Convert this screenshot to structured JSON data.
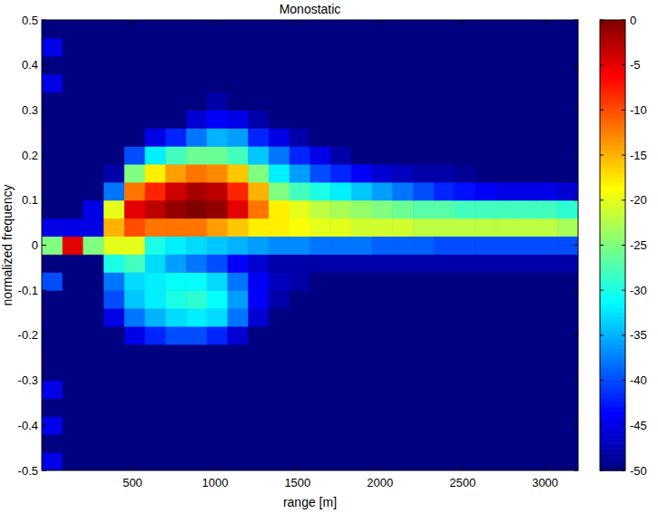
{
  "chart_data": {
    "type": "heatmap",
    "title": "Monostatic",
    "x_label": "range [m]",
    "y_label": "normalized frequency",
    "xlim": [
      -50,
      3200
    ],
    "ylim": [
      -0.5,
      0.5
    ],
    "xticks": [
      500,
      1000,
      1500,
      2000,
      2500,
      3000
    ],
    "yticks": [
      -0.5,
      -0.4,
      -0.3,
      -0.2,
      -0.1,
      0,
      0.1,
      0.2,
      0.3,
      0.4,
      0.5
    ],
    "x_bins": [
      -50,
      75,
      200,
      325,
      450,
      575,
      700,
      825,
      950,
      1075,
      1200,
      1325,
      1450,
      1575,
      1700,
      1825,
      1950,
      2075,
      2200,
      2325,
      2450,
      2575,
      2700,
      2825,
      2950,
      3075,
      3200
    ],
    "y_bins": [
      -0.5,
      -0.46,
      -0.42,
      -0.38,
      -0.34,
      -0.3,
      -0.26,
      -0.22,
      -0.18,
      -0.14,
      -0.1,
      -0.06,
      -0.02,
      0.02,
      0.06,
      0.1,
      0.14,
      0.18,
      0.22,
      0.26,
      0.3,
      0.34,
      0.38,
      0.42,
      0.46,
      0.5
    ],
    "cells": [
      [
        -45,
        -50,
        -50,
        -50,
        -50,
        -50,
        -50,
        -50,
        -50,
        -50,
        -50,
        -50,
        -50,
        -50,
        -50,
        -50,
        -50,
        -50,
        -50,
        -50,
        -50,
        -50,
        -50,
        -50,
        -50,
        -50
      ],
      [
        -50,
        -50,
        -50,
        -50,
        -50,
        -50,
        -50,
        -50,
        -50,
        -50,
        -50,
        -50,
        -50,
        -50,
        -50,
        -50,
        -50,
        -50,
        -50,
        -50,
        -50,
        -50,
        -50,
        -50,
        -50,
        -50
      ],
      [
        -45,
        -50,
        -50,
        -50,
        -50,
        -50,
        -50,
        -50,
        -50,
        -50,
        -50,
        -50,
        -50,
        -50,
        -50,
        -50,
        -50,
        -50,
        -50,
        -50,
        -50,
        -50,
        -50,
        -50,
        -50,
        -50
      ],
      [
        -50,
        -50,
        -50,
        -50,
        -50,
        -50,
        -50,
        -50,
        -50,
        -50,
        -50,
        -50,
        -50,
        -50,
        -50,
        -50,
        -50,
        -50,
        -50,
        -50,
        -50,
        -50,
        -50,
        -50,
        -50,
        -50
      ],
      [
        -45,
        -50,
        -50,
        -50,
        -50,
        -50,
        -50,
        -50,
        -50,
        -50,
        -50,
        -50,
        -50,
        -50,
        -50,
        -50,
        -50,
        -50,
        -50,
        -50,
        -50,
        -50,
        -50,
        -50,
        -50,
        -50
      ],
      [
        -50,
        -50,
        -50,
        -50,
        -50,
        -50,
        -50,
        -50,
        -50,
        -50,
        -50,
        -50,
        -50,
        -50,
        -50,
        -50,
        -50,
        -50,
        -50,
        -50,
        -50,
        -50,
        -50,
        -50,
        -50,
        -50
      ],
      [
        -50,
        -50,
        -50,
        -50,
        -50,
        -50,
        -50,
        -50,
        -50,
        -50,
        -50,
        -50,
        -50,
        -50,
        -50,
        -50,
        -50,
        -50,
        -50,
        -50,
        -50,
        -50,
        -50,
        -50,
        -50,
        -50
      ],
      [
        -50,
        -50,
        -50,
        -50,
        -45,
        -42,
        -40,
        -40,
        -42,
        -46,
        -50,
        -50,
        -50,
        -50,
        -50,
        -50,
        -50,
        -50,
        -50,
        -50,
        -50,
        -50,
        -50,
        -50,
        -50,
        -50
      ],
      [
        -50,
        -50,
        -50,
        -45,
        -38,
        -35,
        -33,
        -32,
        -33,
        -38,
        -46,
        -50,
        -50,
        -50,
        -50,
        -50,
        -50,
        -50,
        -50,
        -50,
        -50,
        -50,
        -50,
        -50,
        -50,
        -50
      ],
      [
        -50,
        -50,
        -50,
        -40,
        -34,
        -32,
        -30,
        -29,
        -31,
        -36,
        -44,
        -48,
        -50,
        -50,
        -50,
        -50,
        -50,
        -50,
        -50,
        -50,
        -50,
        -50,
        -50,
        -50,
        -50,
        -50
      ],
      [
        -40,
        -50,
        -50,
        -38,
        -33,
        -32,
        -31,
        -31,
        -33,
        -38,
        -44,
        -47,
        -48,
        -50,
        -50,
        -50,
        -50,
        -50,
        -50,
        -50,
        -50,
        -50,
        -50,
        -50,
        -50,
        -50
      ],
      [
        -50,
        -50,
        -50,
        -30,
        -28,
        -33,
        -36,
        -38,
        -40,
        -44,
        -46,
        -48,
        -48,
        -48,
        -48,
        -48,
        -48,
        -48,
        -48,
        -48,
        -48,
        -48,
        -48,
        -48,
        -48,
        -48
      ],
      [
        -25,
        -5,
        -25,
        -20,
        -20,
        -30,
        -32,
        -33,
        -34,
        -35,
        -36,
        -37,
        -37,
        -38,
        -38,
        -38,
        -39,
        -39,
        -39,
        -40,
        -40,
        -40,
        -40,
        -40,
        -40,
        -40
      ],
      [
        -45,
        -45,
        -45,
        -15,
        -10,
        -12,
        -12,
        -12,
        -14,
        -16,
        -18,
        -18,
        -19,
        -20,
        -20,
        -21,
        -21,
        -21,
        -22,
        -22,
        -22,
        -22,
        -22,
        -22,
        -22,
        -23
      ],
      [
        -50,
        -50,
        -45,
        -20,
        -5,
        -3,
        -1,
        0,
        -1,
        -5,
        -12,
        -18,
        -20,
        -22,
        -23,
        -24,
        -25,
        -26,
        -27,
        -27,
        -28,
        -28,
        -28,
        -28,
        -28,
        -29
      ],
      [
        -50,
        -50,
        -50,
        -38,
        -12,
        -8,
        -4,
        -2,
        -3,
        -8,
        -15,
        -25,
        -28,
        -30,
        -32,
        -34,
        -36,
        -38,
        -40,
        -42,
        -43,
        -44,
        -45,
        -45,
        -45,
        -46
      ],
      [
        -50,
        -50,
        -50,
        -48,
        -25,
        -18,
        -14,
        -12,
        -13,
        -16,
        -25,
        -32,
        -36,
        -40,
        -42,
        -44,
        -46,
        -47,
        -48,
        -48,
        -49,
        -50,
        -50,
        -50,
        -50,
        -50
      ],
      [
        -50,
        -50,
        -50,
        -50,
        -40,
        -32,
        -28,
        -26,
        -26,
        -28,
        -34,
        -38,
        -42,
        -45,
        -48,
        -50,
        -50,
        -50,
        -50,
        -50,
        -50,
        -50,
        -50,
        -50,
        -50,
        -50
      ],
      [
        -50,
        -50,
        -50,
        -50,
        -50,
        -45,
        -42,
        -38,
        -35,
        -36,
        -42,
        -45,
        -48,
        -50,
        -50,
        -50,
        -50,
        -50,
        -50,
        -50,
        -50,
        -50,
        -50,
        -50,
        -50,
        -50
      ],
      [
        -50,
        -50,
        -50,
        -50,
        -50,
        -50,
        -50,
        -46,
        -44,
        -45,
        -48,
        -50,
        -50,
        -50,
        -50,
        -50,
        -50,
        -50,
        -50,
        -50,
        -50,
        -50,
        -50,
        -50,
        -50,
        -50
      ],
      [
        -50,
        -50,
        -50,
        -50,
        -50,
        -50,
        -50,
        -50,
        -48,
        -50,
        -50,
        -50,
        -50,
        -50,
        -50,
        -50,
        -50,
        -50,
        -50,
        -50,
        -50,
        -50,
        -50,
        -50,
        -50,
        -50
      ],
      [
        -45,
        -50,
        -50,
        -50,
        -50,
        -50,
        -50,
        -50,
        -50,
        -50,
        -50,
        -50,
        -50,
        -50,
        -50,
        -50,
        -50,
        -50,
        -50,
        -50,
        -50,
        -50,
        -50,
        -50,
        -50,
        -50
      ],
      [
        -50,
        -50,
        -50,
        -50,
        -50,
        -50,
        -50,
        -50,
        -50,
        -50,
        -50,
        -50,
        -50,
        -50,
        -50,
        -50,
        -50,
        -50,
        -50,
        -50,
        -50,
        -50,
        -50,
        -50,
        -50,
        -50
      ],
      [
        -45,
        -50,
        -50,
        -50,
        -50,
        -50,
        -50,
        -50,
        -50,
        -50,
        -50,
        -50,
        -50,
        -50,
        -50,
        -50,
        -50,
        -50,
        -50,
        -50,
        -50,
        -50,
        -50,
        -50,
        -50,
        -50
      ],
      [
        -50,
        -50,
        -50,
        -50,
        -50,
        -50,
        -50,
        -50,
        -50,
        -50,
        -50,
        -50,
        -50,
        -50,
        -50,
        -50,
        -50,
        -50,
        -50,
        -50,
        -50,
        -50,
        -50,
        -50,
        -50,
        -50
      ]
    ],
    "clim": [
      -50,
      0
    ],
    "cticks": [
      0,
      -5,
      -10,
      -15,
      -20,
      -25,
      -30,
      -35,
      -40,
      -45,
      -50
    ]
  }
}
